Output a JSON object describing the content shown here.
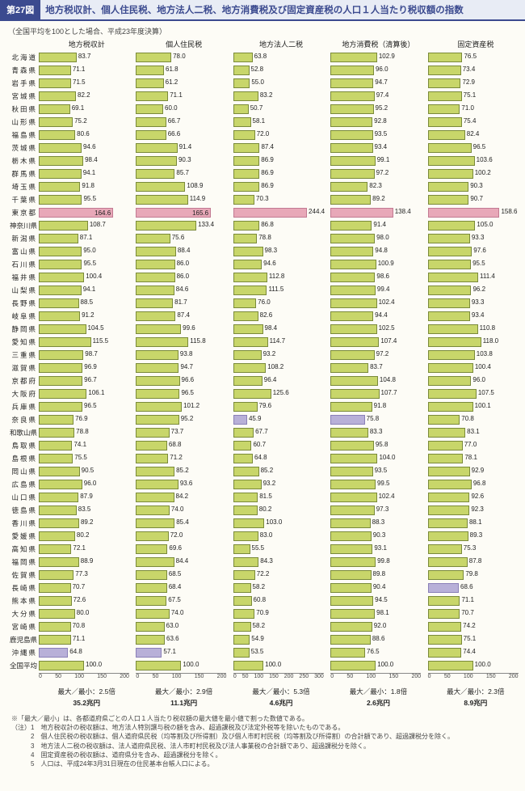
{
  "header": {
    "badge": "第27図",
    "title": "地方税収計、個人住民税、地方法人二税、地方消費税及び固定資産税の人口１人当たり税収額の指数"
  },
  "subtitle": "（全国平均を100とした場合、平成23年度決算）",
  "prefectures": [
    "北海道",
    "青森県",
    "岩手県",
    "宮城県",
    "秋田県",
    "山形県",
    "福島県",
    "茨城県",
    "栃木県",
    "群馬県",
    "埼玉県",
    "千葉県",
    "東京都",
    "神奈川県",
    "新潟県",
    "富山県",
    "石川県",
    "福井県",
    "山梨県",
    "長野県",
    "岐阜県",
    "静岡県",
    "愛知県",
    "三重県",
    "滋賀県",
    "京都府",
    "大阪府",
    "兵庫県",
    "奈良県",
    "和歌山県",
    "鳥取県",
    "島根県",
    "岡山県",
    "広島県",
    "山口県",
    "徳島県",
    "香川県",
    "愛媛県",
    "高知県",
    "福岡県",
    "佐賀県",
    "長崎県",
    "熊本県",
    "大分県",
    "宮崎県",
    "鹿児島県",
    "沖縄県",
    "全国平均"
  ],
  "highlight_index": 12,
  "alt_indices": {
    "0": [
      46
    ],
    "1": [
      46
    ],
    "2": [
      28
    ],
    "3": [
      28
    ],
    "4": [
      41
    ]
  },
  "charts": [
    {
      "title": "地方税収計",
      "xmax": 200,
      "ticks": [
        "0",
        "50",
        "100",
        "150",
        "200"
      ],
      "data": [
        83.7,
        71.1,
        71.5,
        82.2,
        69.1,
        75.2,
        80.6,
        94.6,
        98.4,
        94.1,
        91.8,
        95.5,
        164.6,
        108.7,
        87.1,
        95.0,
        95.5,
        100.4,
        94.1,
        88.5,
        91.2,
        104.5,
        115.5,
        98.7,
        96.9,
        96.7,
        106.1,
        96.5,
        76.9,
        78.8,
        74.1,
        75.5,
        90.5,
        96.0,
        87.9,
        83.5,
        89.2,
        80.2,
        72.1,
        88.9,
        77.3,
        70.7,
        72.6,
        80.0,
        70.8,
        71.1,
        64.8,
        100.0
      ],
      "footer_ratio": "最大／最小：2.5倍",
      "footer_total": "35.2兆円"
    },
    {
      "title": "個人住民税",
      "xmax": 200,
      "ticks": [
        "0",
        "50",
        "100",
        "150",
        "200"
      ],
      "data": [
        78.0,
        61.8,
        61.2,
        71.1,
        60.0,
        66.7,
        66.6,
        91.4,
        90.3,
        85.7,
        108.9,
        114.9,
        165.6,
        133.4,
        75.6,
        88.4,
        86.0,
        86.0,
        84.6,
        81.7,
        87.4,
        99.6,
        115.8,
        93.8,
        94.7,
        96.6,
        96.5,
        101.2,
        95.2,
        73.7,
        68.8,
        71.2,
        85.2,
        93.6,
        84.2,
        74.0,
        85.4,
        72.0,
        69.6,
        84.4,
        68.5,
        68.4,
        67.5,
        74.0,
        63.0,
        63.6,
        57.1,
        100.0
      ],
      "footer_ratio": "最大／最小：2.9倍",
      "footer_total": "11.1兆円"
    },
    {
      "title": "地方法人二税",
      "xmax": 300,
      "ticks": [
        "0",
        "50",
        "100",
        "150",
        "200",
        "250",
        "300"
      ],
      "data": [
        63.8,
        52.8,
        55.0,
        83.2,
        50.7,
        58.1,
        72.0,
        87.4,
        86.9,
        86.9,
        86.9,
        70.3,
        244.4,
        86.8,
        78.8,
        98.3,
        94.6,
        112.8,
        111.5,
        76.0,
        82.6,
        98.4,
        114.7,
        93.2,
        108.2,
        96.4,
        125.6,
        79.6,
        45.9,
        67.7,
        60.7,
        64.8,
        85.2,
        93.2,
        81.5,
        80.2,
        103.0,
        83.0,
        55.5,
        84.3,
        72.2,
        58.2,
        60.8,
        70.9,
        58.2,
        54.9,
        53.5,
        100.0
      ],
      "footer_ratio": "最大／最小：5.3倍",
      "footer_total": "4.6兆円"
    },
    {
      "title": "地方消費税（清算後）",
      "xmax": 200,
      "ticks": [
        "0",
        "50",
        "100",
        "150",
        "200"
      ],
      "data": [
        102.9,
        96.0,
        94.7,
        97.4,
        95.2,
        92.8,
        93.5,
        93.4,
        99.1,
        97.2,
        82.3,
        89.2,
        138.4,
        91.4,
        98.0,
        94.8,
        100.9,
        98.6,
        99.4,
        102.4,
        94.4,
        102.5,
        107.4,
        97.2,
        83.7,
        104.8,
        107.7,
        91.8,
        75.8,
        83.3,
        95.8,
        104.0,
        93.5,
        99.5,
        102.4,
        97.3,
        88.3,
        90.3,
        93.1,
        99.8,
        89.8,
        90.4,
        94.5,
        98.1,
        92.0,
        88.6,
        76.5,
        100.0
      ],
      "footer_ratio": "最大／最小：1.8倍",
      "footer_total": "2.6兆円"
    },
    {
      "title": "固定資産税",
      "xmax": 200,
      "ticks": [
        "0",
        "50",
        "100",
        "150",
        "200"
      ],
      "data": [
        76.5,
        73.4,
        72.9,
        75.1,
        71.0,
        75.4,
        82.4,
        96.5,
        103.6,
        100.2,
        90.3,
        90.7,
        158.6,
        105.0,
        93.3,
        97.6,
        95.5,
        111.4,
        96.2,
        93.3,
        93.4,
        110.8,
        118.0,
        103.8,
        100.4,
        96.0,
        107.5,
        100.1,
        70.8,
        83.1,
        77.0,
        78.1,
        92.9,
        96.8,
        92.6,
        92.3,
        88.1,
        89.3,
        75.3,
        87.8,
        79.8,
        68.6,
        71.1,
        70.7,
        74.2,
        75.1,
        74.4,
        100.0
      ],
      "footer_ratio": "最大／最小：2.3倍",
      "footer_total": "8.9兆円"
    }
  ],
  "notes": [
    "※「最大／最小」は、各都道府県ごとの人口１人当たり税収額の最大値を最小値で割った数値である。",
    "（注）1　地方税収計の税収額は、地方法人特別譲与税の額を含み、超過課税及び法定外税等を除いたものである。",
    "　　　2　個人住民税の税収額は、個人道府県民税（均等割及び所得割）及び個人市町村民税（均等割及び所得割）の合計額であり、超過課税分を除く。",
    "　　　3　地方法人二税の税収額は、法人道府県民税、法人市町村民税及び法人事業税の合計額であり、超過課税分を除く。",
    "　　　4　固定資産税の税収額は、道府県分を含み、超過課税分を除く。",
    "　　　5　人口は、平成24年3月31日現在の住民基本台帳人口による。"
  ],
  "colors": {
    "bar": "#c8d66a",
    "bar_border": "#7a8a3a",
    "highlight": "#e8a8b8",
    "alt": "#b8b0d8",
    "header_bg": "#3b4a8f"
  }
}
